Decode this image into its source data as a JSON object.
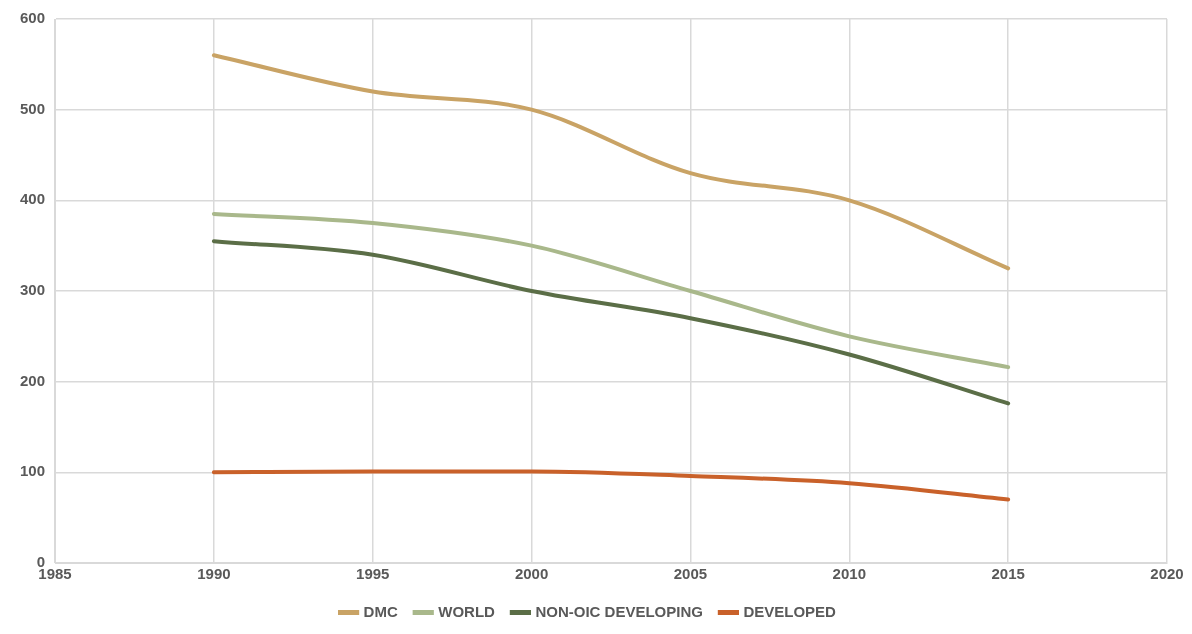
{
  "chart_data": {
    "type": "line",
    "x": [
      1990,
      1995,
      2000,
      2005,
      2010,
      2015
    ],
    "series": [
      {
        "name": "DMC",
        "color": "#c9a365",
        "values": [
          560,
          520,
          500,
          430,
          400,
          325
        ]
      },
      {
        "name": "WORLD",
        "color": "#a9b88b",
        "values": [
          385,
          375,
          350,
          300,
          250,
          216
        ]
      },
      {
        "name": "NON-OIC DEVELOPING",
        "color": "#5b6e47",
        "values": [
          355,
          340,
          300,
          270,
          230,
          176
        ]
      },
      {
        "name": "DEVELOPED",
        "color": "#c9612a",
        "values": [
          100,
          101,
          101,
          96,
          88,
          70
        ]
      }
    ],
    "xlim": [
      1985,
      2020
    ],
    "xticks": [
      1985,
      1990,
      1995,
      2000,
      2005,
      2010,
      2015,
      2020
    ],
    "ylim": [
      0,
      600
    ],
    "yticks": [
      0,
      100,
      200,
      300,
      400,
      500,
      600
    ],
    "grid": true,
    "legend": "bottom",
    "marker": "none",
    "line_style": "solid"
  }
}
